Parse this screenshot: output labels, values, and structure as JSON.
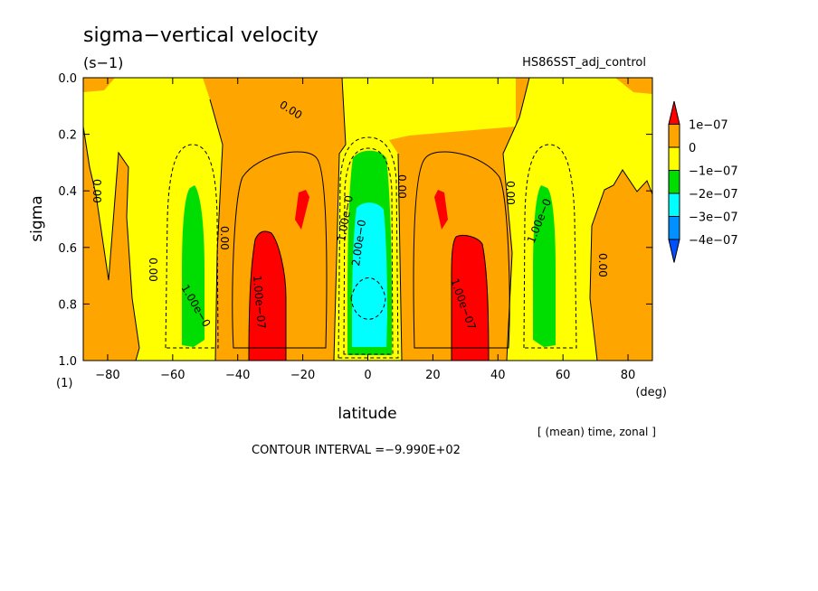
{
  "chart_data": {
    "type": "heatmap",
    "title": "sigma−vertical velocity",
    "units": "(s−1)",
    "dataset": "HS86SST_adj_control",
    "xlabel": "latitude",
    "xunit": "(deg)",
    "ylabel": "sigma",
    "yunit": "(1)",
    "xlim": [
      -87.5,
      87.5
    ],
    "ylim": [
      0.0,
      1.0
    ],
    "y_inverted": true,
    "xticks": [
      -80,
      -60,
      -40,
      -20,
      0,
      20,
      40,
      60,
      80
    ],
    "xtick_labels": [
      "−80",
      "−60",
      "−40",
      "−20",
      "0",
      "20",
      "40",
      "60",
      "80"
    ],
    "yticks": [
      0.0,
      0.2,
      0.4,
      0.6,
      0.8,
      1.0
    ],
    "ytick_labels": [
      "0.0",
      "0.2",
      "0.4",
      "0.6",
      "0.8",
      "1.0"
    ],
    "average_note": "[ (mean) time, zonal ]",
    "contour_interval_text": "CONTOUR INTERVAL =−9.990E+02",
    "colorbar": {
      "levels": [
        "1e−07",
        "0",
        "−1e−07",
        "−2e−07",
        "−3e−07",
        "−4e−07"
      ],
      "colors": [
        "#ff0000",
        "#ffa500",
        "#ffff00",
        "#00dd00",
        "#00ffff",
        "#0090ff",
        "#0050ff"
      ]
    },
    "bands": [
      {
        "class": "yellow",
        "lat": [
          -87.5,
          -78
        ],
        "sigma": [
          0.0,
          0.2
        ]
      },
      {
        "class": "orange",
        "lat": [
          -87.5,
          -68
        ],
        "sigma": [
          0.28,
          1.0
        ]
      },
      {
        "class": "orange",
        "lat": [
          -50,
          -8
        ],
        "sigma": [
          0.0,
          1.0
        ]
      },
      {
        "class": "orange",
        "lat": [
          8,
          48
        ],
        "sigma": [
          0.0,
          1.0
        ]
      },
      {
        "class": "orange",
        "lat": [
          68,
          87.5
        ],
        "sigma": [
          0.28,
          1.0
        ]
      },
      {
        "class": "green",
        "lat": [
          -58,
          -52
        ],
        "sigma": [
          0.37,
          0.95
        ]
      },
      {
        "class": "red",
        "lat": [
          -36,
          -27
        ],
        "sigma": [
          0.55,
          0.95
        ]
      },
      {
        "class": "red",
        "lat": [
          -22,
          -18
        ],
        "sigma": [
          0.4,
          0.53
        ]
      },
      {
        "class": "green",
        "lat": [
          -4,
          4
        ],
        "sigma": [
          0.25,
          0.97
        ]
      },
      {
        "class": "cyan",
        "lat": [
          -3,
          4
        ],
        "sigma": [
          0.45,
          0.95
        ]
      },
      {
        "class": "red",
        "lat": [
          21,
          25
        ],
        "sigma": [
          0.4,
          0.53
        ]
      },
      {
        "class": "red",
        "lat": [
          27,
          36
        ],
        "sigma": [
          0.57,
          0.95
        ]
      },
      {
        "class": "green",
        "lat": [
          52,
          58
        ],
        "sigma": [
          0.37,
          0.95
        ]
      }
    ],
    "contour_labels": [
      "0.00",
      "1.00e−0",
      "2.00e−0",
      "1.00e−07"
    ]
  }
}
